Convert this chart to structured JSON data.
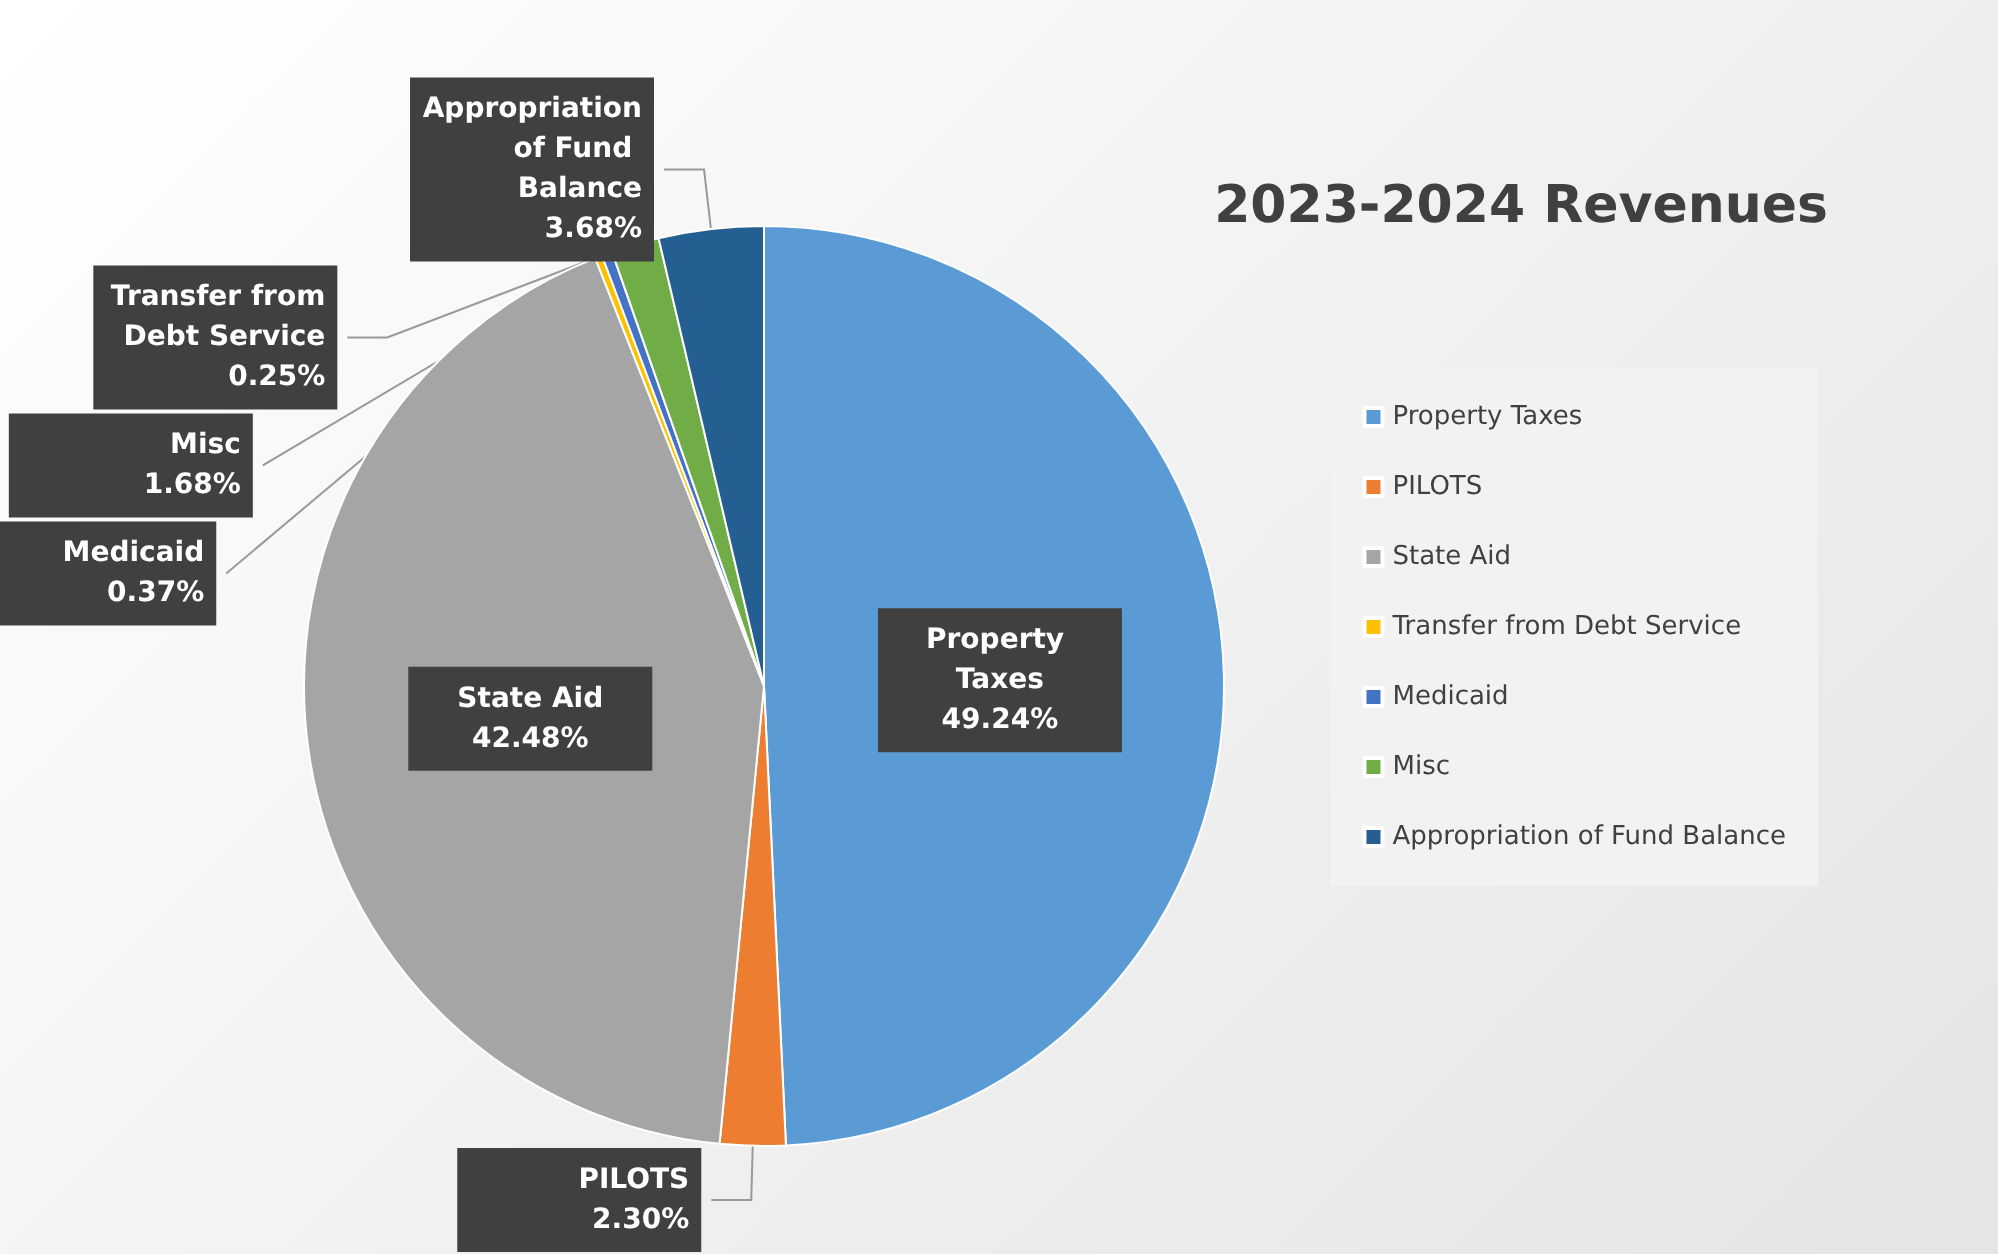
{
  "chart_data": {
    "type": "pie",
    "title": "2023-2024 Revenues",
    "categories": [
      "Property Taxes",
      "PILOTS",
      "State Aid",
      "Transfer from Debt Service",
      "Medicaid",
      "Misc",
      "Appropriation of Fund Balance"
    ],
    "values": [
      49.24,
      2.3,
      42.48,
      0.25,
      0.37,
      1.68,
      3.68
    ],
    "value_labels": [
      "49.24%",
      "2.30%",
      "42.48%",
      "0.25%",
      "0.37%",
      "1.68%",
      "3.68%"
    ],
    "colors": [
      "#5b9bd5",
      "#ed7d31",
      "#a5a5a5",
      "#ffc000",
      "#4472c4",
      "#70ad47",
      "#255e91"
    ],
    "legend": "right"
  }
}
